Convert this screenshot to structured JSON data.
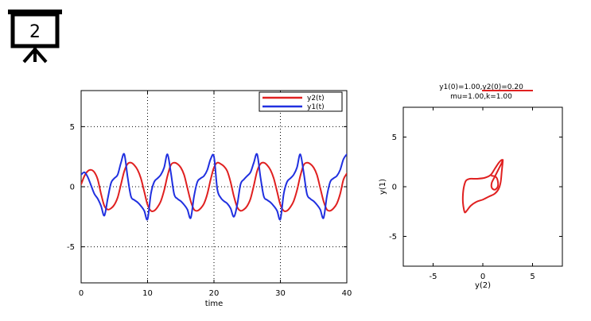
{
  "badge": {
    "number": "2",
    "icon": "presentation-board-icon"
  },
  "chart_data": [
    {
      "type": "line",
      "xlabel": "time",
      "ylabel": "",
      "xlim": [
        0,
        40
      ],
      "ylim": [
        -8,
        8
      ],
      "xticks": [
        "0",
        "10",
        "20",
        "30",
        "40"
      ],
      "xtick_values": [
        0,
        10,
        20,
        30,
        40
      ],
      "yticks": [
        "-5",
        "0",
        "5"
      ],
      "ytick_values": [
        -5,
        0,
        5
      ],
      "grid": true,
      "legend_position": "top-right",
      "series": [
        {
          "name": "y2(t)",
          "color": "#e02020",
          "x": [
            0,
            0.5,
            1,
            1.5,
            2,
            2.5,
            3,
            3.5,
            4,
            4.5,
            5,
            5.5,
            6,
            6.5,
            7,
            7.5,
            8,
            8.5,
            9,
            9.5,
            10,
            10.5,
            11,
            11.5,
            12,
            12.5,
            13,
            13.5,
            14,
            14.5,
            15,
            15.5,
            16,
            16.5,
            17,
            17.5,
            18,
            18.5,
            19,
            19.5,
            20,
            20.5,
            21,
            21.5,
            22,
            22.5,
            23,
            23.5,
            24,
            24.5,
            25,
            25.5,
            26,
            26.5,
            27,
            27.5,
            28,
            28.5,
            29,
            29.5,
            30,
            30.5,
            31,
            31.5,
            32,
            32.5,
            33,
            33.5,
            34,
            34.5,
            35,
            35.5,
            36,
            36.5,
            37,
            37.5,
            38,
            38.5,
            39,
            39.5,
            40
          ],
          "values": [
            0.2,
            0.9,
            1.3,
            1.4,
            1.2,
            0.6,
            -0.6,
            -1.6,
            -1.9,
            -1.8,
            -1.5,
            -0.9,
            0.2,
            1.3,
            1.9,
            2.0,
            1.8,
            1.4,
            0.7,
            -0.4,
            -1.5,
            -2.0,
            -2.0,
            -1.7,
            -1.2,
            -0.3,
            0.9,
            1.8,
            2.0,
            1.9,
            1.6,
            1.0,
            -0.1,
            -1.2,
            -1.9,
            -2.0,
            -1.8,
            -1.4,
            -0.6,
            0.6,
            1.6,
            2.0,
            1.9,
            1.7,
            1.3,
            0.4,
            -0.8,
            -1.7,
            -2.0,
            -1.9,
            -1.6,
            -1.0,
            0.1,
            1.3,
            1.9,
            2.0,
            1.8,
            1.4,
            0.7,
            -0.4,
            -1.5,
            -2.0,
            -2.0,
            -1.7,
            -1.2,
            -0.3,
            0.9,
            1.8,
            2.0,
            1.9,
            1.6,
            1.0,
            -0.1,
            -1.2,
            -1.9,
            -2.0,
            -1.8,
            -1.4,
            -0.6,
            0.6,
            1.1
          ]
        },
        {
          "name": "y1(t)",
          "color": "#2030e0",
          "x": [
            0,
            0.5,
            1,
            1.5,
            2,
            2.5,
            3,
            3.5,
            4,
            4.5,
            5,
            5.5,
            6,
            6.5,
            7,
            7.5,
            8,
            8.5,
            9,
            9.5,
            10,
            10.5,
            11,
            11.5,
            12,
            12.5,
            13,
            13.5,
            14,
            14.5,
            15,
            15.5,
            16,
            16.5,
            17,
            17.5,
            18,
            18.5,
            19,
            19.5,
            20,
            20.5,
            21,
            21.5,
            22,
            22.5,
            23,
            23.5,
            24,
            24.5,
            25,
            25.5,
            26,
            26.5,
            27,
            27.5,
            28,
            28.5,
            29,
            29.5,
            30,
            30.5,
            31,
            31.5,
            32,
            32.5,
            33,
            33.5,
            34,
            34.5,
            35,
            35.5,
            36,
            36.5,
            37,
            37.5,
            38,
            38.5,
            39,
            39.5,
            40
          ],
          "values": [
            1.0,
            1.2,
            0.8,
            0.1,
            -0.6,
            -1.0,
            -1.6,
            -2.4,
            -1.0,
            0.3,
            0.7,
            1.0,
            2.0,
            2.7,
            0.8,
            -0.8,
            -1.1,
            -1.3,
            -1.6,
            -2.0,
            -2.7,
            -0.6,
            0.4,
            0.7,
            1.0,
            1.6,
            2.7,
            1.2,
            -0.6,
            -1.0,
            -1.2,
            -1.5,
            -1.9,
            -2.6,
            -0.8,
            0.4,
            0.7,
            0.9,
            1.4,
            2.3,
            2.5,
            -0.2,
            -0.9,
            -1.2,
            -1.4,
            -1.8,
            -2.5,
            -1.5,
            0.2,
            0.6,
            0.9,
            1.2,
            2.0,
            2.7,
            0.8,
            -0.8,
            -1.1,
            -1.3,
            -1.6,
            -2.0,
            -2.7,
            -0.6,
            0.4,
            0.7,
            1.0,
            1.6,
            2.7,
            1.2,
            -0.6,
            -1.0,
            -1.2,
            -1.5,
            -1.9,
            -2.6,
            -0.8,
            0.4,
            0.7,
            0.9,
            1.4,
            2.3,
            2.7
          ]
        }
      ]
    },
    {
      "type": "line",
      "title": "y1(0)=1.00,y2(0)=0.20",
      "subtitle": "mu=1.00,k=1.00",
      "xlabel": "y(2)",
      "ylabel": "y(1)",
      "xlim": [
        -8,
        8
      ],
      "ylim": [
        -8,
        8
      ],
      "xticks": [
        "-5",
        "0",
        "5"
      ],
      "xtick_values": [
        -5,
        0,
        5
      ],
      "yticks": [
        "-5",
        "0",
        "5"
      ],
      "ytick_values": [
        -5,
        0,
        5
      ],
      "grid": false,
      "series": [
        {
          "color": "#e02020",
          "x": [
            0.9,
            1.3,
            1.5,
            1.5,
            1.2,
            0.9,
            0.9,
            1.2,
            1.6,
            1.9,
            2.0,
            2.0,
            1.9,
            1.8,
            1.6,
            1.2,
            0.6,
            0.0,
            -0.6,
            -1.2,
            -1.6,
            -1.8,
            -1.9,
            -2.0,
            -2.0,
            -1.9,
            -1.7,
            -1.3,
            -0.6,
            0.2,
            0.8,
            1.2,
            1.6,
            1.9,
            2.0
          ],
          "values": [
            1.1,
            1.0,
            0.6,
            0.0,
            -0.3,
            -0.1,
            0.4,
            1.0,
            1.8,
            2.4,
            2.7,
            2.5,
            1.5,
            0.5,
            -0.2,
            -0.7,
            -1.0,
            -1.3,
            -1.5,
            -1.9,
            -2.4,
            -2.6,
            -2.3,
            -1.6,
            -0.8,
            0.0,
            0.6,
            0.8,
            0.8,
            0.9,
            1.2,
            1.8,
            2.4,
            2.7,
            2.6
          ]
        }
      ]
    }
  ]
}
